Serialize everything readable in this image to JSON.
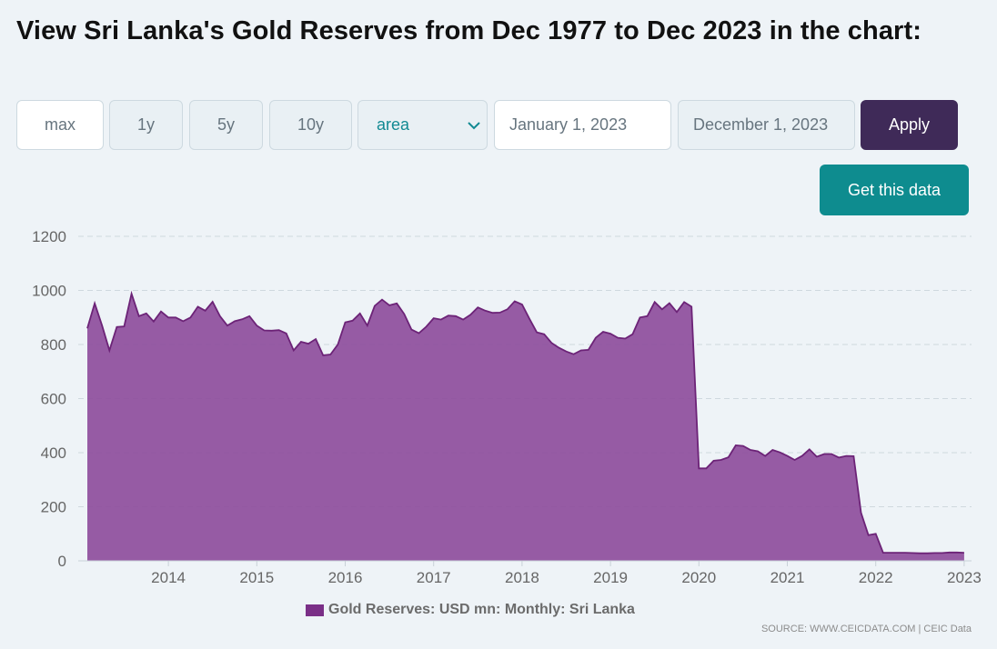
{
  "title": "View Sri Lanka's Gold Reserves from Dec 1977 to Dec 2023 in the chart:",
  "controls": {
    "ranges": [
      "max",
      "1y",
      "5y",
      "10y"
    ],
    "active_range": "max",
    "chart_type": "area",
    "date_from": "January 1, 2023",
    "date_to": "December 1, 2023",
    "apply_label": "Apply",
    "get_data_label": "Get this data"
  },
  "icons": {
    "dropdown": "chevron-down-icon"
  },
  "colors": {
    "series_fill": "#8e4e9c",
    "series_line": "#6c2377",
    "legend_swatch": "#7a2f87",
    "apply_bg": "#3f2a58",
    "get_data_bg": "#0e8c8f",
    "select_text": "#128a93"
  },
  "source": "SOURCE: WWW.CEICDATA.COM | CEIC Data",
  "chart_data": {
    "type": "area",
    "title": "",
    "xlabel": "",
    "ylabel": "",
    "ylim": [
      0,
      1200
    ],
    "yticks": [
      0,
      200,
      400,
      600,
      800,
      1000,
      1200
    ],
    "xticks": [
      "2014",
      "2015",
      "2016",
      "2017",
      "2018",
      "2019",
      "2020",
      "2021",
      "2022",
      "2023"
    ],
    "grid": true,
    "legend_placement": "bottom",
    "series": [
      {
        "name": "Gold Reserves: USD mn: Monthly: Sri Lanka",
        "x_start": "2013-02",
        "frequency": "monthly",
        "values": [
          860,
          952,
          870,
          778,
          865,
          867,
          988,
          905,
          915,
          885,
          922,
          900,
          900,
          886,
          900,
          940,
          925,
          958,
          905,
          870,
          886,
          893,
          905,
          870,
          852,
          851,
          853,
          841,
          778,
          810,
          803,
          820,
          760,
          763,
          800,
          882,
          888,
          915,
          870,
          943,
          966,
          945,
          952,
          913,
          855,
          842,
          866,
          897,
          892,
          907,
          905,
          892,
          910,
          937,
          925,
          917,
          918,
          930,
          960,
          948,
          895,
          845,
          838,
          806,
          788,
          774,
          764,
          778,
          780,
          825,
          847,
          840,
          825,
          822,
          838,
          900,
          905,
          957,
          930,
          953,
          920,
          957,
          940,
          342,
          342,
          370,
          373,
          383,
          427,
          425,
          410,
          405,
          388,
          410,
          401,
          388,
          373,
          388,
          412,
          385,
          395,
          395,
          382,
          388,
          387,
          178,
          95,
          100,
          30,
          30,
          30,
          30,
          29,
          28,
          28,
          29,
          29,
          31,
          31,
          30
        ]
      }
    ]
  }
}
